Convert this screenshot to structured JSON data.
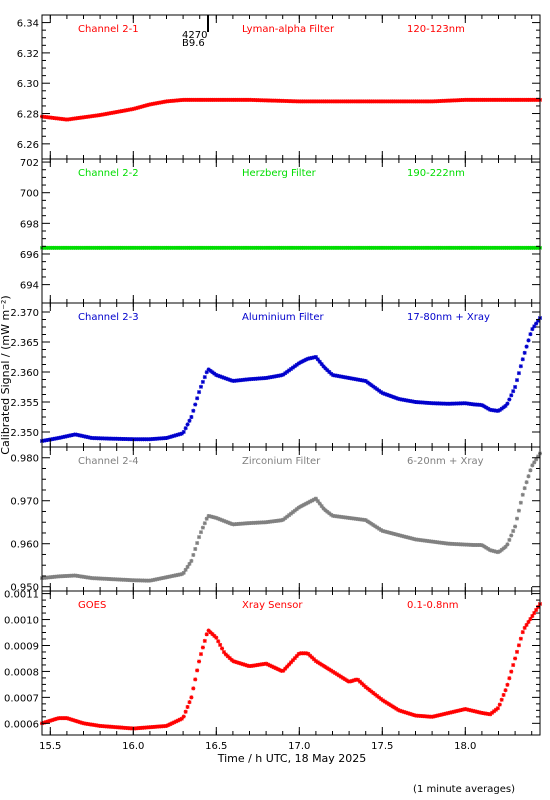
{
  "xlabel": "Time / h UTC, 18 May 2025",
  "ylabel": "Calibrated Signal / (mW m⁻²)",
  "footnote": "(1 minute averages)",
  "marker_labels": [
    "4270",
    "B9.6"
  ],
  "chart_data": [
    {
      "type": "scatter",
      "channel": "Channel 2-1",
      "filter": "Lyman-alpha Filter",
      "band": "120-123nm",
      "color": "#ff0000",
      "xlim": [
        15.45,
        18.45
      ],
      "ylim": [
        6.25,
        6.345
      ],
      "yticks": [
        "6.26",
        "6.28",
        "6.30",
        "6.32",
        "6.34"
      ],
      "xticks": [
        "15.5",
        "16.0",
        "16.5",
        "17.0",
        "17.5",
        "18.0"
      ],
      "x": [
        15.45,
        15.6,
        15.8,
        16.0,
        16.1,
        16.2,
        16.3,
        16.4,
        16.5,
        16.7,
        17.0,
        17.2,
        17.4,
        17.6,
        17.8,
        18.0,
        18.2,
        18.45
      ],
      "y": [
        6.278,
        6.276,
        6.279,
        6.283,
        6.286,
        6.288,
        6.289,
        6.289,
        6.289,
        6.289,
        6.288,
        6.288,
        6.288,
        6.288,
        6.288,
        6.289,
        6.289,
        6.289
      ]
    },
    {
      "type": "scatter",
      "channel": "Channel 2-2",
      "filter": "Herzberg Filter",
      "band": "190-222nm",
      "color": "#00dd00",
      "xlim": [
        15.45,
        18.45
      ],
      "ylim": [
        692.8,
        702.2
      ],
      "yticks": [
        "694",
        "696",
        "698",
        "700",
        "702"
      ],
      "xticks": [
        "15.5",
        "16.0",
        "16.5",
        "17.0",
        "17.5",
        "18.0"
      ],
      "x": [
        15.45,
        16.0,
        16.5,
        17.0,
        17.5,
        18.0,
        18.45
      ],
      "y": [
        696.4,
        696.4,
        696.4,
        696.4,
        696.4,
        696.4,
        696.4
      ]
    },
    {
      "type": "scatter",
      "channel": "Channel 2-3",
      "filter": "Aluminium Filter",
      "band": "17-80nm + Xray",
      "color": "#0000cc",
      "xlim": [
        15.45,
        18.45
      ],
      "ylim": [
        2.3475,
        2.3715
      ],
      "yticks": [
        "2.350",
        "2.355",
        "2.360",
        "2.365",
        "2.370"
      ],
      "xticks": [
        "15.5",
        "16.0",
        "16.5",
        "17.0",
        "17.5",
        "18.0"
      ],
      "x": [
        15.45,
        15.55,
        15.65,
        15.75,
        15.85,
        16.0,
        16.1,
        16.2,
        16.3,
        16.35,
        16.4,
        16.45,
        16.5,
        16.6,
        16.7,
        16.8,
        16.9,
        17.0,
        17.05,
        17.1,
        17.15,
        17.2,
        17.3,
        17.4,
        17.5,
        17.6,
        17.7,
        17.8,
        17.9,
        18.0,
        18.05,
        18.1,
        18.15,
        18.2,
        18.25,
        18.3,
        18.35,
        18.4,
        18.45
      ],
      "y": [
        2.3485,
        2.349,
        2.3496,
        2.349,
        2.3489,
        2.3488,
        2.3488,
        2.349,
        2.3498,
        2.3525,
        2.357,
        2.3605,
        2.3595,
        2.3585,
        2.3588,
        2.359,
        2.3595,
        2.3615,
        2.3622,
        2.3625,
        2.3608,
        2.3595,
        2.359,
        2.3585,
        2.3565,
        2.3555,
        2.355,
        2.3548,
        2.3547,
        2.3548,
        2.3546,
        2.3545,
        2.3537,
        2.3535,
        2.3545,
        2.3575,
        2.3625,
        2.367,
        2.369
      ]
    },
    {
      "type": "scatter",
      "channel": "Channel 2-4",
      "filter": "Zirconium Filter",
      "band": "6-20nm + Xray",
      "color": "#808080",
      "xlim": [
        15.45,
        18.45
      ],
      "ylim": [
        0.949,
        0.9825
      ],
      "yticks": [
        "0.950",
        "0.960",
        "0.970",
        "0.980"
      ],
      "xticks": [
        "15.5",
        "16.0",
        "16.5",
        "17.0",
        "17.5",
        "18.0"
      ],
      "x": [
        15.45,
        15.55,
        15.65,
        15.75,
        15.85,
        16.0,
        16.1,
        16.2,
        16.3,
        16.35,
        16.4,
        16.45,
        16.5,
        16.6,
        16.7,
        16.8,
        16.9,
        17.0,
        17.05,
        17.1,
        17.15,
        17.2,
        17.3,
        17.4,
        17.5,
        17.6,
        17.7,
        17.8,
        17.9,
        18.0,
        18.05,
        18.1,
        18.15,
        18.2,
        18.25,
        18.3,
        18.35,
        18.4,
        18.45
      ],
      "y": [
        0.952,
        0.9524,
        0.9526,
        0.952,
        0.9518,
        0.9515,
        0.9514,
        0.9522,
        0.953,
        0.956,
        0.962,
        0.9665,
        0.966,
        0.9645,
        0.9648,
        0.965,
        0.9655,
        0.9685,
        0.9695,
        0.9705,
        0.968,
        0.9665,
        0.966,
        0.9655,
        0.963,
        0.962,
        0.961,
        0.9605,
        0.96,
        0.9598,
        0.9597,
        0.9597,
        0.9585,
        0.958,
        0.9595,
        0.964,
        0.972,
        0.978,
        0.981
      ]
    },
    {
      "type": "scatter",
      "channel": "GOES",
      "filter": "Xray Sensor",
      "band": "0.1-0.8nm",
      "color": "#ff0000",
      "xlim": [
        15.45,
        18.45
      ],
      "ylim": [
        0.000555,
        0.00111
      ],
      "yticks": [
        "0.0006",
        "0.0007",
        "0.0008",
        "0.0009",
        "0.0010",
        "0.0011"
      ],
      "xticks": [
        "15.5",
        "16.0",
        "16.5",
        "17.0",
        "17.5",
        "18.0"
      ],
      "x": [
        15.45,
        15.55,
        15.6,
        15.7,
        15.8,
        15.9,
        16.0,
        16.1,
        16.2,
        16.3,
        16.35,
        16.4,
        16.45,
        16.5,
        16.55,
        16.6,
        16.7,
        16.8,
        16.9,
        17.0,
        17.05,
        17.1,
        17.2,
        17.3,
        17.35,
        17.4,
        17.5,
        17.6,
        17.7,
        17.8,
        17.9,
        18.0,
        18.1,
        18.15,
        18.2,
        18.25,
        18.3,
        18.35,
        18.4,
        18.45
      ],
      "y": [
        0.0006,
        0.00062,
        0.00062,
        0.0006,
        0.00059,
        0.000585,
        0.00058,
        0.000585,
        0.00059,
        0.00062,
        0.0007,
        0.00085,
        0.00096,
        0.00093,
        0.00087,
        0.00084,
        0.00082,
        0.00083,
        0.0008,
        0.00087,
        0.00087,
        0.00084,
        0.0008,
        0.00076,
        0.00077,
        0.00074,
        0.00069,
        0.00065,
        0.00063,
        0.000625,
        0.00064,
        0.000655,
        0.00064,
        0.000635,
        0.00066,
        0.00074,
        0.00085,
        0.00096,
        0.00101,
        0.00106
      ]
    }
  ]
}
